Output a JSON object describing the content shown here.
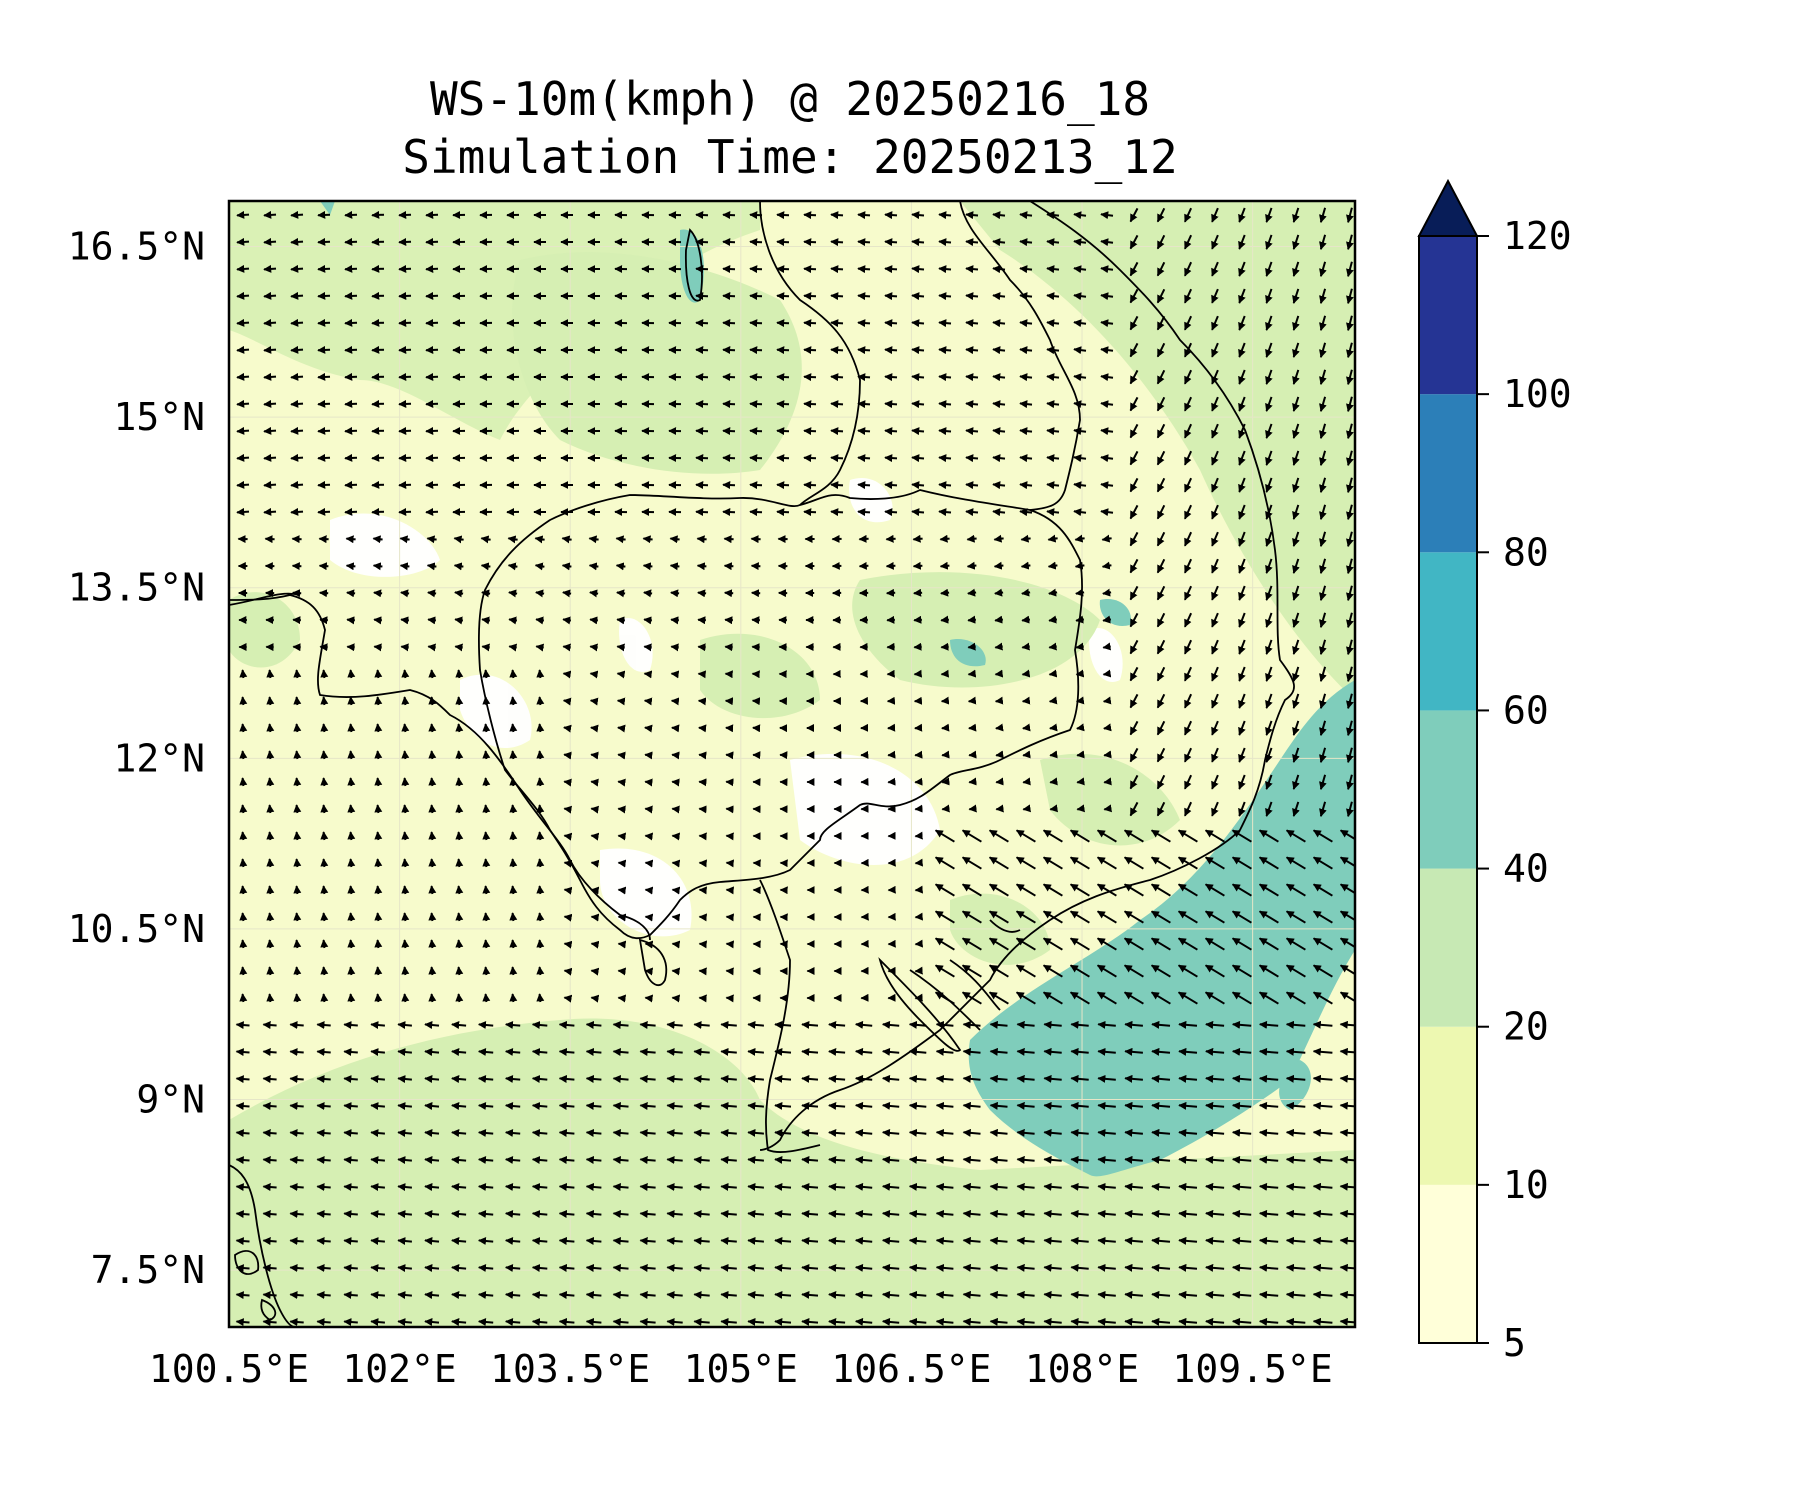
{
  "title": {
    "line1": "WS-10m(kmph) @ 20250216_18",
    "line2": "Simulation Time: 20250213_12"
  },
  "map": {
    "lat_ticks": [
      "16.5°N",
      "15°N",
      "13.5°N",
      "12°N",
      "10.5°N",
      "9°N",
      "7.5°N"
    ],
    "lon_ticks": [
      "100.5°E",
      "102°E",
      "103.5°E",
      "105°E",
      "106.5°E",
      "108°E",
      "109.5°E"
    ],
    "lat_values": [
      16.5,
      15,
      13.5,
      12,
      10.5,
      9,
      7.5
    ],
    "lon_values": [
      100.5,
      102,
      103.5,
      105,
      106.5,
      108,
      109.5
    ],
    "lon_range": [
      100.5,
      110.4
    ],
    "lat_range": [
      7.0,
      16.9
    ],
    "colors": {
      "land_bg": "#f7fbcc",
      "very_light": "#ffffff",
      "light_green": "#d6efb3",
      "teal": "#7fcdbb",
      "border": "#000000"
    }
  },
  "colorbar": {
    "levels": [
      "5",
      "10",
      "20",
      "40",
      "60",
      "80",
      "100",
      "120"
    ],
    "values": [
      5,
      10,
      20,
      40,
      60,
      80,
      100,
      120
    ],
    "colors": [
      "#ffffd9",
      "#edf8b1",
      "#c7e9b4",
      "#7fcdbb",
      "#41b6c4",
      "#2c7fb8",
      "#253494",
      "#081d58"
    ],
    "extend": "max"
  }
}
